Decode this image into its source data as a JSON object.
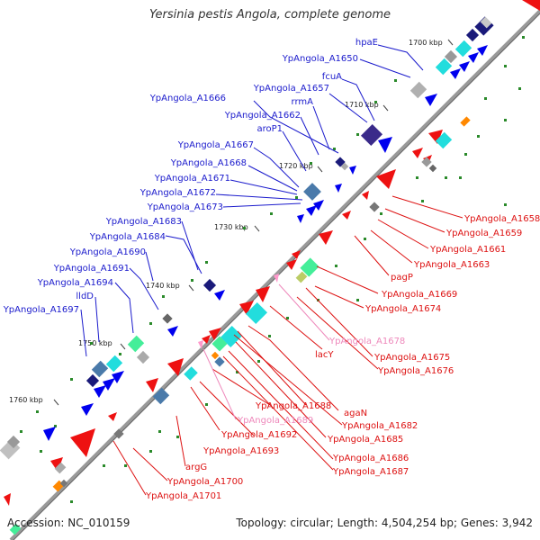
{
  "title": "Yersinia pestis Angola, complete genome",
  "accession": "Accession: NC_010159",
  "summary": "Topology: circular; Length: 4,504,254 bp; Genes: 3,942",
  "colors": {
    "forward_label": "#1a1acc",
    "reverse_label": "#dd1111",
    "pale_label": "#ee88bb",
    "backbone": "#888888"
  },
  "ticks": [
    "1700 kbp",
    "1710 kbp",
    "1720 kbp",
    "1730 kbp",
    "1740 kbp",
    "1750 kbp",
    "1760 kbp"
  ],
  "forward_labels": [
    "hpaE",
    "YpAngola_A1650",
    "fcuA",
    "YpAngola_A1657",
    "YpAngola_A1666",
    "rrmA",
    "YpAngola_A1662",
    "aroP1",
    "YpAngola_A1667",
    "YpAngola_A1668",
    "YpAngola_A1671",
    "YpAngola_A1672",
    "YpAngola_A1673",
    "YpAngola_A1683",
    "YpAngola_A1684",
    "YpAngola_A1690",
    "YpAngola_A1691",
    "YpAngola_A1694",
    "lldD",
    "YpAngola_A1697"
  ],
  "reverse_labels": [
    "YpAngola_A1658",
    "YpAngola_A1659",
    "YpAngola_A1661",
    "YpAngola_A1663",
    "pagP",
    "YpAngola_A1669",
    "YpAngola_A1674",
    "YpAngola_A1678",
    "lacY",
    "YpAngola_A1675",
    "YpAngola_A1676",
    "YpAngola_A1688",
    "agaN",
    "YpAngola_A1689",
    "YpAngola_A1682",
    "YpAngola_A1692",
    "YpAngola_A1685",
    "YpAngola_A1693",
    "YpAngola_A1686",
    "YpAngola_A1687",
    "argG",
    "YpAngola_A1700",
    "YpAngola_A1701"
  ]
}
